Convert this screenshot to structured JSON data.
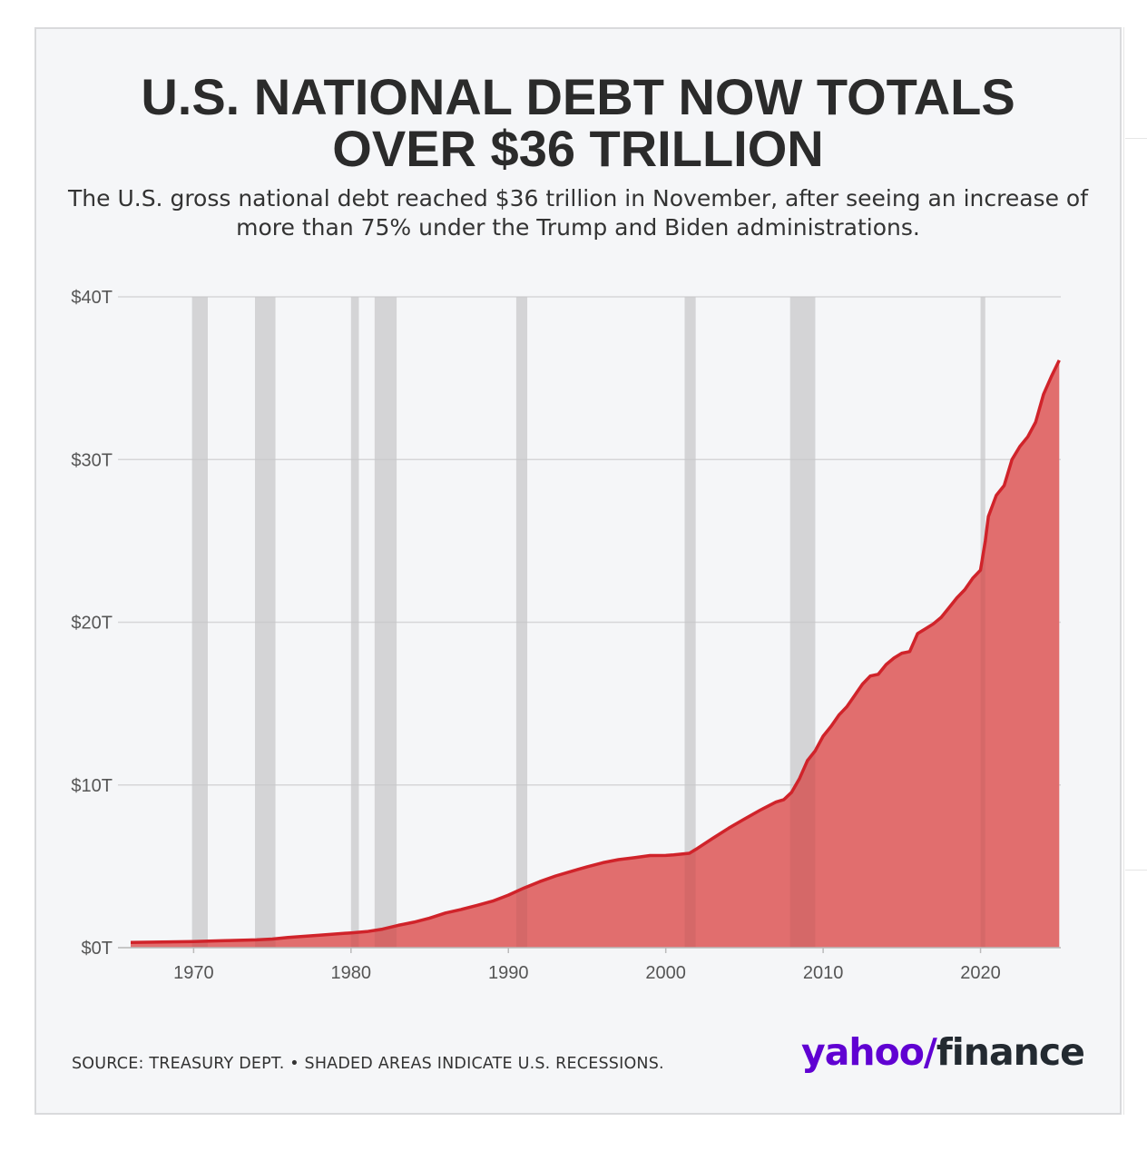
{
  "title_line1": "U.S. NATIONAL DEBT NOW TOTALS",
  "title_line2": "OVER $36 TRILLION",
  "subtitle_line1": "The U.S. gross national debt reached $36 trillion in November, after seeing an increase of",
  "subtitle_line2": "more than 75% under the Trump and Biden administrations.",
  "source": "SOURCE: TREASURY DEPT. • SHADED AREAS INDICATE U.S. RECESSIONS.",
  "logo": {
    "part1": "yahoo",
    "slash": "/",
    "part2": "finance"
  },
  "colors": {
    "area": "#e06b6b",
    "line": "#d0232a",
    "recession": "#e0e0e2",
    "grid": "#d6d6d8",
    "text": "#2b2b2b",
    "brand": "#6001d2"
  },
  "chart_data": {
    "type": "area",
    "x_label": "",
    "y_label": "",
    "xlim": [
      1966,
      2025.1
    ],
    "ylim": [
      0,
      40
    ],
    "y_ticks": [
      {
        "value": 0,
        "label": "$0T"
      },
      {
        "value": 10,
        "label": "$10T"
      },
      {
        "value": 20,
        "label": "$20T"
      },
      {
        "value": 30,
        "label": "$30T"
      },
      {
        "value": 40,
        "label": "$40T"
      }
    ],
    "x_ticks": [
      {
        "value": 1970,
        "label": "1970"
      },
      {
        "value": 1980,
        "label": "1980"
      },
      {
        "value": 1990,
        "label": "1990"
      },
      {
        "value": 2000,
        "label": "2000"
      },
      {
        "value": 2010,
        "label": "2010"
      },
      {
        "value": 2020,
        "label": "2020"
      }
    ],
    "recessions": [
      [
        1969.9,
        1970.9
      ],
      [
        1973.9,
        1975.2
      ],
      [
        1980.0,
        1980.5
      ],
      [
        1981.5,
        1982.9
      ],
      [
        1990.5,
        1991.2
      ],
      [
        2001.2,
        2001.9
      ],
      [
        2007.9,
        2009.5
      ],
      [
        2020.0,
        2020.3
      ]
    ],
    "series": [
      {
        "x": [
          1966,
          1968,
          1970,
          1972,
          1974,
          1975,
          1976,
          1978,
          1980,
          1981,
          1982,
          1983,
          1984,
          1985,
          1986,
          1987,
          1988,
          1989,
          1990,
          1991,
          1992,
          1993,
          1994,
          1995,
          1996,
          1997,
          1998,
          1999,
          2000,
          2000.5,
          2001,
          2001.5,
          2002,
          2003,
          2004,
          2005,
          2006,
          2007,
          2007.5,
          2008,
          2008.5,
          2009,
          2009.5,
          2010,
          2010.5,
          2011,
          2011.5,
          2012,
          2012.5,
          2013,
          2013.5,
          2014,
          2014.5,
          2015,
          2015.5,
          2016,
          2016.5,
          2017,
          2017.5,
          2018,
          2018.5,
          2019,
          2019.5,
          2020,
          2020.3,
          2020.5,
          2021,
          2021.5,
          2022,
          2022.5,
          2023,
          2023.5,
          2024,
          2024.5,
          2025
        ],
        "values": [
          0.32,
          0.35,
          0.38,
          0.43,
          0.48,
          0.53,
          0.63,
          0.77,
          0.91,
          0.99,
          1.14,
          1.37,
          1.57,
          1.82,
          2.13,
          2.35,
          2.6,
          2.86,
          3.23,
          3.67,
          4.06,
          4.41,
          4.69,
          4.97,
          5.22,
          5.41,
          5.53,
          5.66,
          5.67,
          5.7,
          5.75,
          5.8,
          6.1,
          6.73,
          7.35,
          7.91,
          8.45,
          8.95,
          9.1,
          9.55,
          10.4,
          11.5,
          12.1,
          13.0,
          13.6,
          14.3,
          14.8,
          15.5,
          16.2,
          16.7,
          16.8,
          17.4,
          17.8,
          18.1,
          18.2,
          19.3,
          19.6,
          19.9,
          20.3,
          20.9,
          21.5,
          22.0,
          22.7,
          23.2,
          25.0,
          26.5,
          27.8,
          28.4,
          30.0,
          30.8,
          31.4,
          32.3,
          34.0,
          35.1,
          36.1
        ]
      }
    ]
  }
}
